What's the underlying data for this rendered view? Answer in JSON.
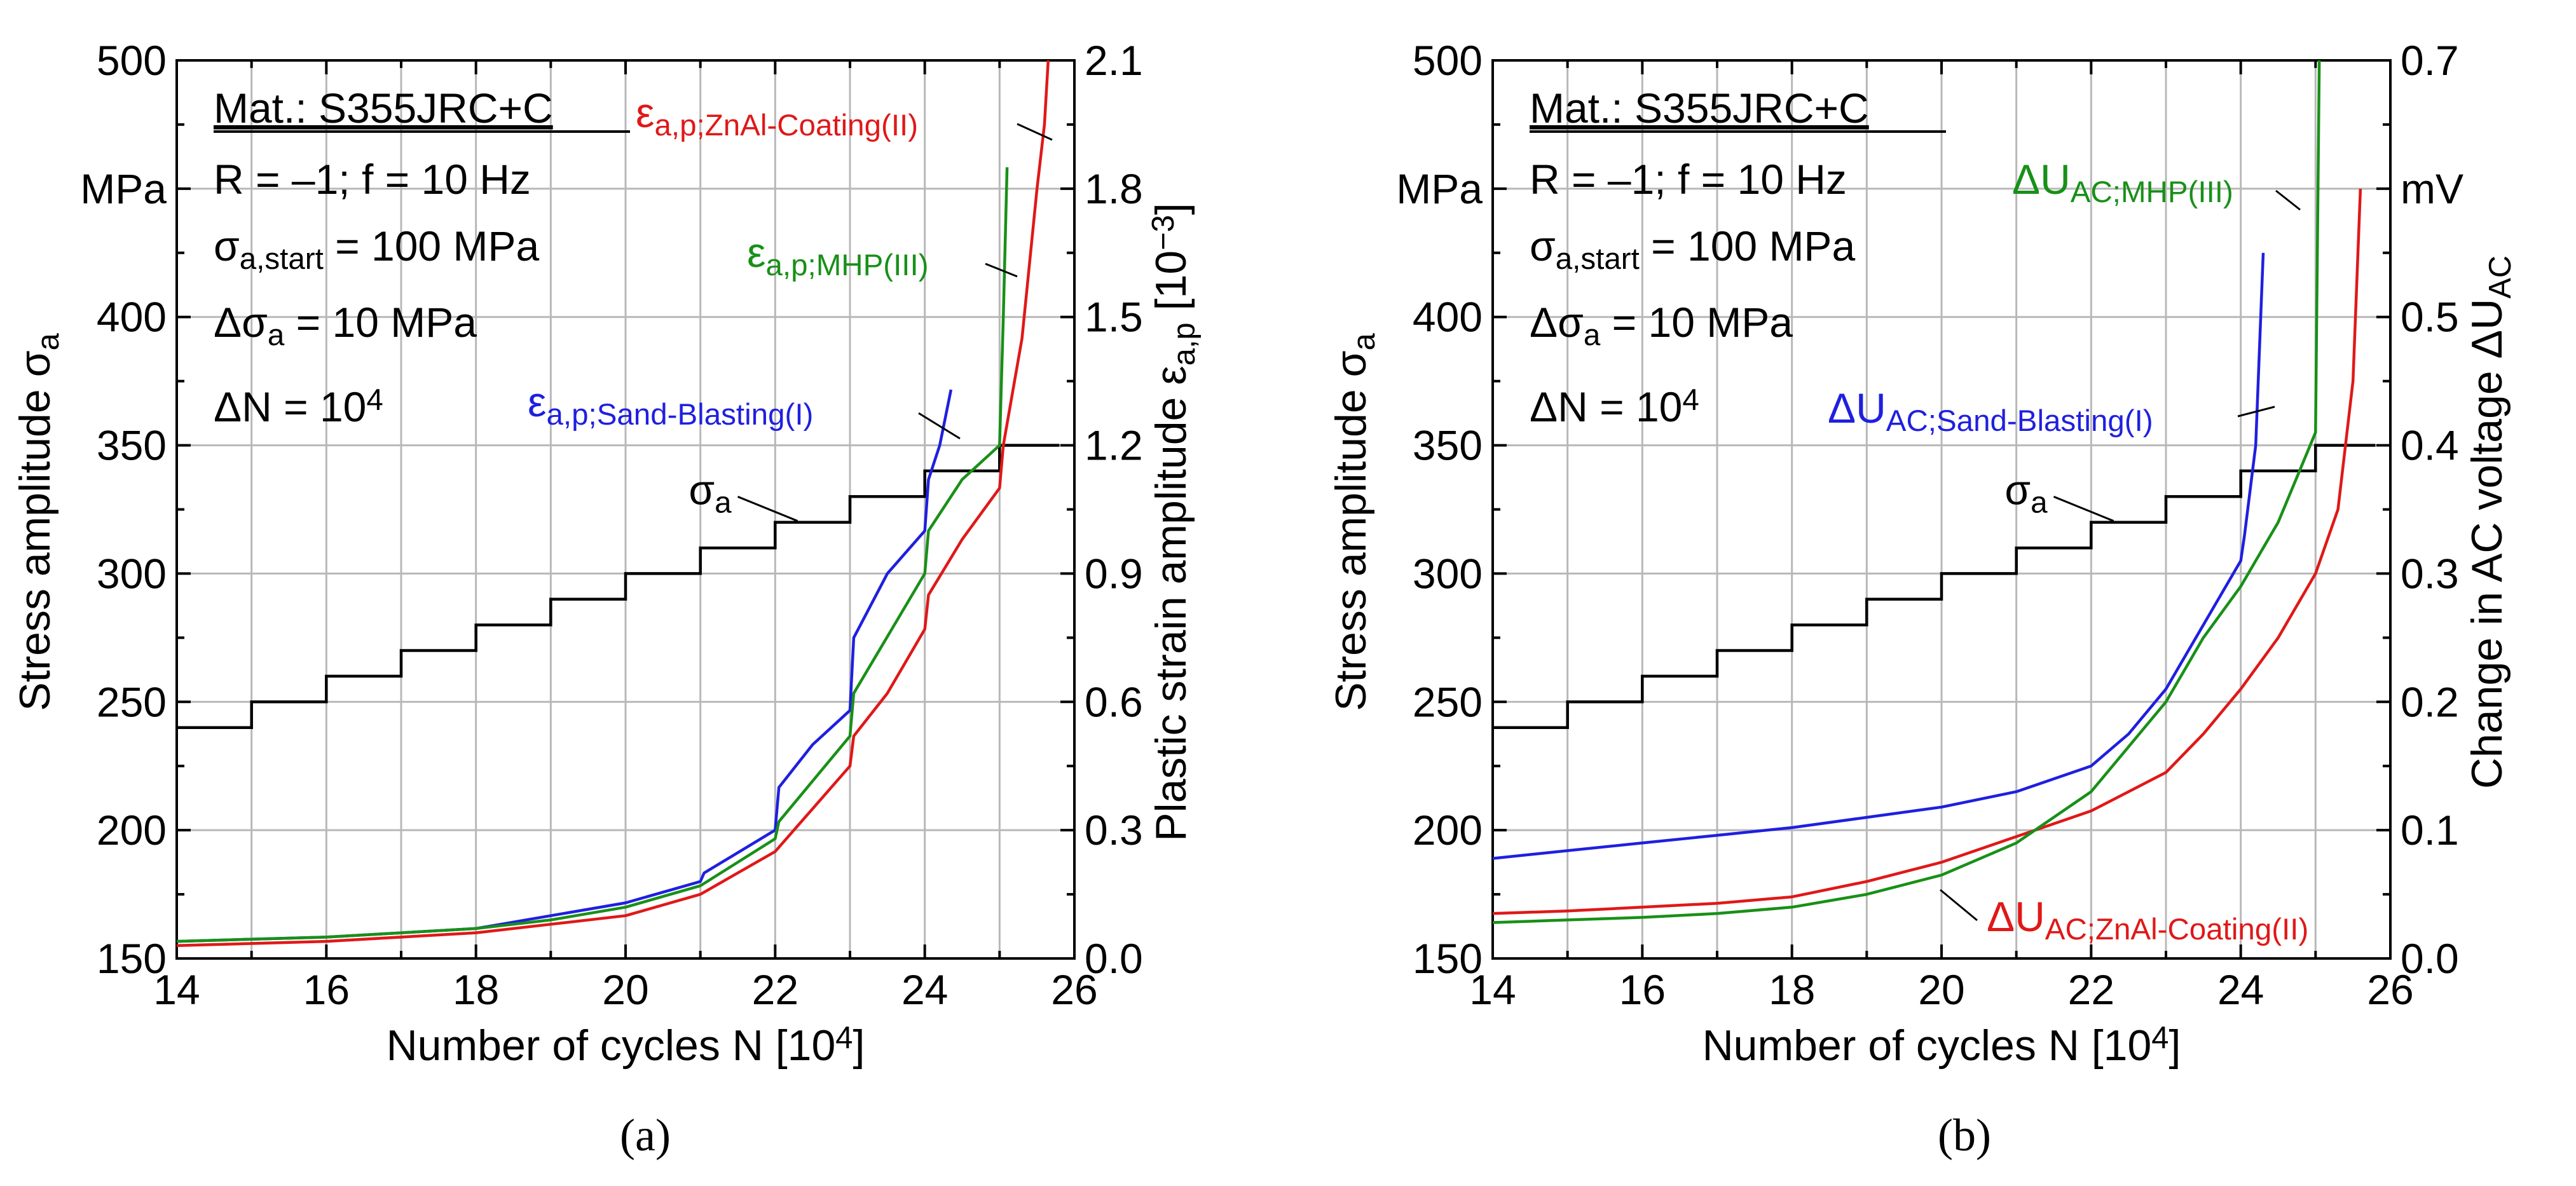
{
  "chart_data": [
    {
      "type": "line",
      "panel_label": "(a)",
      "xlabel": "Number of cycles N [10^4]",
      "ylabel_left": "Stress amplitude σa",
      "ylabel_right": "Plastic strain amplitude εa,p [10^-3]",
      "xlim": [
        14,
        26
      ],
      "x_ticks": [
        "14",
        "16",
        "18",
        "20",
        "22",
        "24",
        "26"
      ],
      "ylim_left": [
        150,
        500
      ],
      "y_ticks_left": [
        "150",
        "200",
        "250",
        "300",
        "350",
        "400",
        "MPa",
        "500"
      ],
      "ylim_right": [
        0.0,
        2.1
      ],
      "y_ticks_right": [
        "0.0",
        "0.3",
        "0.6",
        "0.9",
        "1.2",
        "1.5",
        "1.8",
        "2.1"
      ],
      "grid": true,
      "info_box": {
        "material": "Mat.: S355JRC+C",
        "line1": "R = –1; f = 10 Hz",
        "line2_base": "σ",
        "line2_sub": "a,start",
        "line2_rest": " = 100 MPa",
        "line3_base": "Δσ",
        "line3_sub": "a",
        "line3_rest": " = 10 MPa",
        "line4_base": "ΔN = 10",
        "line4_sup": "4"
      },
      "stress_series": {
        "name_base": "σ",
        "name_sub": "a",
        "color": "#000000",
        "axis": "left",
        "x": [
          14,
          15,
          15,
          16,
          16,
          17,
          17,
          18,
          18,
          19,
          19,
          20,
          20,
          21,
          21,
          22,
          22,
          23,
          23,
          24,
          24,
          25,
          25,
          25.8
        ],
        "y": [
          240,
          240,
          250,
          250,
          260,
          260,
          270,
          270,
          280,
          280,
          290,
          290,
          300,
          300,
          310,
          310,
          320,
          320,
          330,
          330,
          340,
          340,
          350,
          350
        ]
      },
      "series": [
        {
          "name_base": "ε",
          "name_sub": "a,p;Sand-Blasting(I)",
          "color": "#1f1fe0",
          "axis": "right",
          "x": [
            14,
            16,
            18,
            19,
            20,
            21,
            21.05,
            22,
            22.05,
            22.5,
            23,
            23.05,
            23.5,
            24,
            24.05,
            24.2,
            24.35
          ],
          "y": [
            0.04,
            0.05,
            0.07,
            0.1,
            0.13,
            0.18,
            0.2,
            0.3,
            0.4,
            0.5,
            0.58,
            0.75,
            0.9,
            1.0,
            1.12,
            1.2,
            1.33
          ]
        },
        {
          "name_base": "ε",
          "name_sub": "a,p;ZnAl-Coating(II)",
          "color": "#e01818",
          "axis": "right",
          "x": [
            14,
            16,
            18,
            19,
            20,
            21,
            22,
            22.5,
            23,
            23.05,
            23.5,
            24,
            24.05,
            24.5,
            25,
            25.05,
            25.3,
            25.5,
            25.6,
            25.65
          ],
          "y": [
            0.03,
            0.04,
            0.06,
            0.08,
            0.1,
            0.15,
            0.25,
            0.35,
            0.45,
            0.52,
            0.62,
            0.77,
            0.85,
            0.98,
            1.1,
            1.2,
            1.45,
            1.8,
            1.95,
            2.1
          ]
        },
        {
          "name_base": "ε",
          "name_sub": "a,p;MHP(III)",
          "color": "#189018",
          "axis": "right",
          "x": [
            14,
            16,
            18,
            19,
            20,
            21,
            22,
            22.05,
            23,
            23.05,
            24,
            24.05,
            24.5,
            25,
            25.05,
            25.1
          ],
          "y": [
            0.04,
            0.05,
            0.07,
            0.09,
            0.12,
            0.17,
            0.28,
            0.32,
            0.52,
            0.62,
            0.9,
            1.0,
            1.12,
            1.2,
            1.5,
            1.85
          ]
        }
      ]
    },
    {
      "type": "line",
      "panel_label": "(b)",
      "xlabel": "Number of cycles N [10^4]",
      "ylabel_left": "Stress amplitude σa",
      "ylabel_right": "Change in AC voltage ΔUAC",
      "xlim": [
        14,
        26
      ],
      "x_ticks": [
        "14",
        "16",
        "18",
        "20",
        "22",
        "24",
        "26"
      ],
      "ylim_left": [
        150,
        500
      ],
      "y_ticks_left": [
        "150",
        "200",
        "250",
        "300",
        "350",
        "400",
        "MPa",
        "500"
      ],
      "ylim_right": [
        0.0,
        0.7
      ],
      "y_ticks_right": [
        "0.0",
        "0.1",
        "0.2",
        "0.3",
        "0.4",
        "0.5",
        "mV",
        "0.7"
      ],
      "grid": true,
      "info_box": {
        "material": "Mat.: S355JRC+C",
        "line1": "R = –1; f = 10 Hz",
        "line2_base": "σ",
        "line2_sub": "a,start",
        "line2_rest": " = 100 MPa",
        "line3_base": "Δσ",
        "line3_sub": "a",
        "line3_rest": " = 10 MPa",
        "line4_base": "ΔN = 10",
        "line4_sup": "4"
      },
      "stress_series": {
        "name_base": "σ",
        "name_sub": "a",
        "color": "#000000",
        "axis": "left",
        "x": [
          14,
          15,
          15,
          16,
          16,
          17,
          17,
          18,
          18,
          19,
          19,
          20,
          20,
          21,
          21,
          22,
          22,
          23,
          23,
          24,
          24,
          25,
          25,
          25.8
        ],
        "y": [
          240,
          240,
          250,
          250,
          260,
          260,
          270,
          270,
          280,
          280,
          290,
          290,
          300,
          300,
          310,
          310,
          320,
          320,
          330,
          330,
          340,
          340,
          350,
          350
        ]
      },
      "series": [
        {
          "name_base": "ΔU",
          "name_sub": "AC;Sand-Blasting(I)",
          "color": "#1f1fe0",
          "axis": "right",
          "x": [
            14,
            15,
            16,
            17,
            18,
            19,
            20,
            21,
            22,
            22.5,
            23,
            23.5,
            24,
            24.05,
            24.2,
            24.3
          ],
          "y": [
            0.078,
            0.084,
            0.09,
            0.096,
            0.102,
            0.11,
            0.118,
            0.13,
            0.15,
            0.175,
            0.21,
            0.26,
            0.31,
            0.33,
            0.4,
            0.55
          ]
        },
        {
          "name_base": "ΔU",
          "name_sub": "AC;ZnAl-Coating(II)",
          "color": "#e01818",
          "axis": "right",
          "x": [
            14,
            15,
            16,
            17,
            18,
            19,
            20,
            21,
            22,
            22.5,
            23,
            23.5,
            24,
            24.5,
            25,
            25.3,
            25.5,
            25.6
          ],
          "y": [
            0.035,
            0.037,
            0.04,
            0.043,
            0.048,
            0.06,
            0.075,
            0.095,
            0.115,
            0.13,
            0.145,
            0.175,
            0.21,
            0.25,
            0.3,
            0.35,
            0.45,
            0.6
          ]
        },
        {
          "name_base": "ΔU",
          "name_sub": "AC;MHP(III)",
          "color": "#189018",
          "axis": "right",
          "x": [
            14,
            15,
            16,
            17,
            18,
            19,
            20,
            21,
            22,
            22.5,
            23,
            23.5,
            24,
            24.5,
            25,
            25.05
          ],
          "y": [
            0.028,
            0.03,
            0.032,
            0.035,
            0.04,
            0.05,
            0.065,
            0.09,
            0.13,
            0.165,
            0.2,
            0.25,
            0.29,
            0.34,
            0.41,
            0.7
          ]
        }
      ]
    }
  ]
}
